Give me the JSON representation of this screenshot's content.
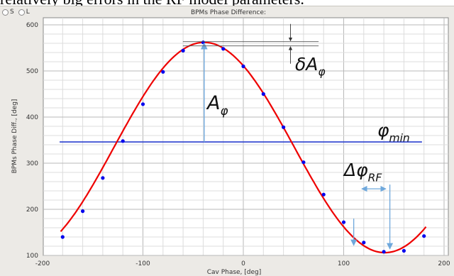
{
  "header_text": "relatively big errors in the RF model parameters.",
  "radio_options": [
    "S",
    "L"
  ],
  "chart_data": {
    "type": "line",
    "title": "BPMs Phase Difference:",
    "xlabel": "Cav Phase, [deg]",
    "ylabel": "BPMs Phase Diff., [deg]",
    "xlim": [
      -200,
      200
    ],
    "ylim": [
      100,
      600
    ],
    "x_ticks": [
      -200,
      -100,
      0,
      100,
      200
    ],
    "y_ticks": [
      100,
      200,
      300,
      400,
      500,
      600
    ],
    "grid": true,
    "series": [
      {
        "kind": "markers",
        "color": "#0000ee",
        "x": [
          -180,
          -160,
          -140,
          -120,
          -100,
          -80,
          -60,
          -40,
          -20,
          0,
          20,
          40,
          60,
          80,
          100,
          120,
          140,
          160,
          180
        ],
        "y": [
          140,
          196,
          268,
          348,
          428,
          498,
          544,
          562,
          548,
          510,
          450,
          378,
          302,
          232,
          172,
          128,
          108,
          110,
          142
        ]
      },
      {
        "kind": "fit",
        "color": "#ee0000",
        "model": "sine",
        "center": 334,
        "amplitude": 228,
        "peak_x": -39
      }
    ],
    "horizontal_line": {
      "y": 346,
      "color": "#2a3fcf"
    },
    "annotations": [
      {
        "label": "δA",
        "subscript": "φ"
      },
      {
        "label": "A",
        "subscript": "φ"
      },
      {
        "label": "φ",
        "subscript": "min"
      },
      {
        "label": "Δφ",
        "subscript": "RF"
      }
    ],
    "annotation_color": "#6fa8dc"
  }
}
